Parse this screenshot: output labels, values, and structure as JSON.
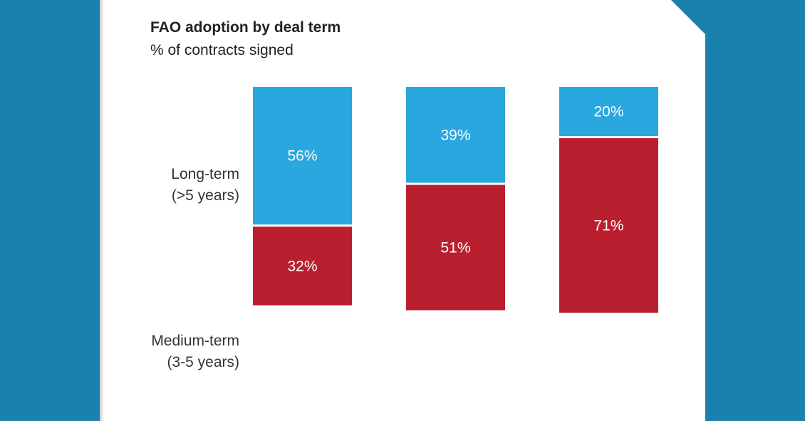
{
  "chart_data": {
    "type": "bar",
    "stacked": true,
    "orientation": "vertical",
    "title": "FAO adoption by deal term",
    "subtitle": "% of contracts signed",
    "categories": [
      "",
      "",
      ""
    ],
    "series": [
      {
        "name": "Medium-term (3-5 years)",
        "label_lines": [
          "Medium-term",
          "(3-5 years)"
        ],
        "color": "#b91f2e",
        "values": [
          32,
          51,
          71
        ],
        "labels": [
          "32%",
          "51%",
          "71%"
        ]
      },
      {
        "name": "Long-term (>5 years)",
        "label_lines": [
          "Long-term",
          "(>5 years)"
        ],
        "color": "#29a7df",
        "values": [
          56,
          39,
          20
        ],
        "labels": [
          "56%",
          "39%",
          "20%"
        ]
      }
    ],
    "legend": "left",
    "grid": false
  },
  "colors": {
    "background": "#1a80ad",
    "card": "#ffffff",
    "text": "#222222"
  }
}
